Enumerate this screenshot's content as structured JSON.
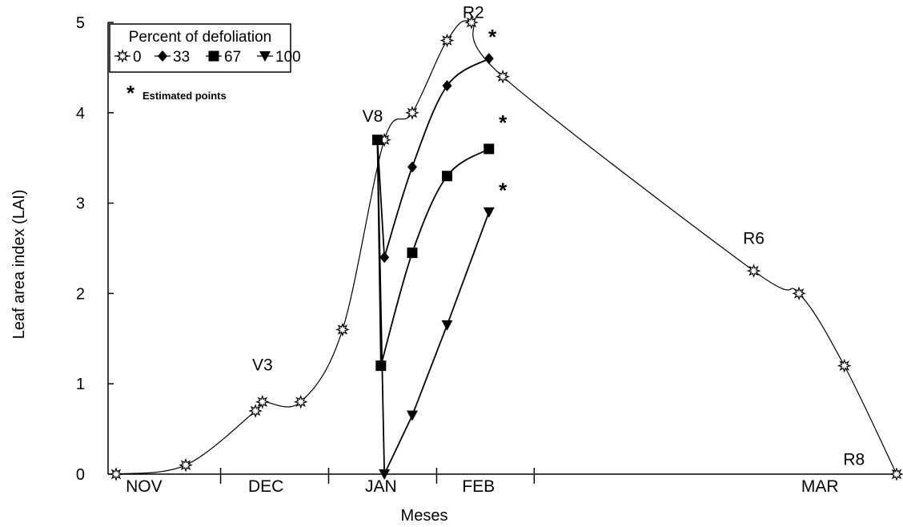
{
  "chart_data": {
    "type": "line",
    "xlabel": "Meses",
    "ylabel": "Leaf area index (LAI)",
    "ylim": [
      0,
      5
    ],
    "yticks": [
      "0",
      "1",
      "2",
      "3",
      "4",
      "5"
    ],
    "months": [
      "NOV",
      "DEC",
      "JAN",
      "FEB",
      "MAR"
    ],
    "x_unit": "days from start of November",
    "legend": {
      "title": "Percent of defoliation",
      "position": "top-left",
      "note": "Estimated points"
    },
    "stages": [
      {
        "label": "V3",
        "x": 42
      },
      {
        "label": "V8",
        "x": 75
      },
      {
        "label": "R2",
        "x": 103
      },
      {
        "label": "R6",
        "x": 183
      },
      {
        "label": "R8",
        "x": 215
      }
    ],
    "series": [
      {
        "name": "0",
        "marker": "open-star",
        "x": [
          0,
          20,
          40,
          42,
          53,
          65,
          77,
          85,
          95,
          102,
          111,
          183,
          196,
          209,
          224
        ],
        "y": [
          0,
          0.1,
          0.7,
          0.8,
          0.8,
          1.6,
          3.7,
          4.0,
          4.8,
          5.0,
          4.4,
          2.25,
          2.0,
          1.2,
          0
        ]
      },
      {
        "name": "33",
        "marker": "diamond",
        "x": [
          75,
          77,
          85,
          95,
          107
        ],
        "y": [
          3.7,
          2.4,
          3.4,
          4.3,
          4.6
        ]
      },
      {
        "name": "67",
        "marker": "square",
        "x": [
          75,
          76,
          85,
          95,
          107
        ],
        "y": [
          3.7,
          1.2,
          2.45,
          3.3,
          3.6
        ]
      },
      {
        "name": "100",
        "marker": "triangle-down",
        "x": [
          75,
          77,
          85,
          95,
          107
        ],
        "y": [
          3.7,
          0.0,
          0.65,
          1.65,
          2.9
        ]
      }
    ],
    "estimated_markers": [
      {
        "series": "33",
        "x": 108,
        "y": 4.85
      },
      {
        "series": "67",
        "x": 111,
        "y": 3.9
      },
      {
        "series": "100",
        "x": 111,
        "y": 3.15
      }
    ],
    "asterisk": "*"
  }
}
